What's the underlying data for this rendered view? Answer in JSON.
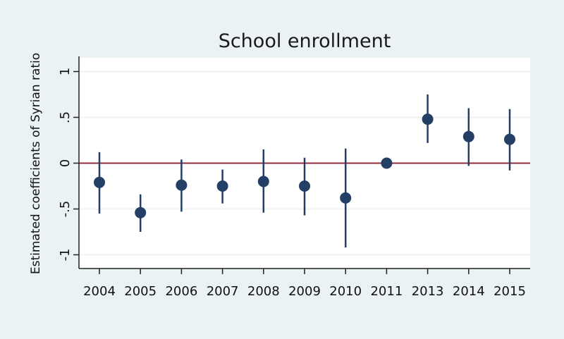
{
  "chart_data": {
    "type": "scatter",
    "title": "School enrollment",
    "xlabel": "",
    "ylabel": "Estimated coefficients of Syrian ratio",
    "categories": [
      "2004",
      "2005",
      "2006",
      "2007",
      "2008",
      "2009",
      "2010",
      "2011",
      "2013",
      "2014",
      "2015"
    ],
    "estimates": [
      -0.21,
      -0.54,
      -0.24,
      -0.25,
      -0.2,
      -0.25,
      -0.38,
      0.0,
      0.48,
      0.29,
      0.26
    ],
    "ci_low": [
      -0.55,
      -0.75,
      -0.53,
      -0.44,
      -0.54,
      -0.57,
      -0.92,
      0.0,
      0.22,
      -0.03,
      -0.08
    ],
    "ci_high": [
      0.12,
      -0.34,
      0.04,
      -0.07,
      0.15,
      0.06,
      0.16,
      0.0,
      0.75,
      0.6,
      0.59
    ],
    "ylim": [
      -1.15,
      1.15
    ],
    "yticks": [
      1,
      0.5,
      0,
      -0.5,
      -1
    ],
    "ytick_labels": [
      "1",
      ".5",
      "0",
      "-.5",
      "-1"
    ],
    "reference_line": 0,
    "grid": true,
    "colors": {
      "background": "#eaf2f3",
      "plot": "#ffffff",
      "grid": "#eef2f3",
      "marker": "#233f66",
      "reference_line": "#8e2b3c",
      "axis": "#222222"
    }
  }
}
